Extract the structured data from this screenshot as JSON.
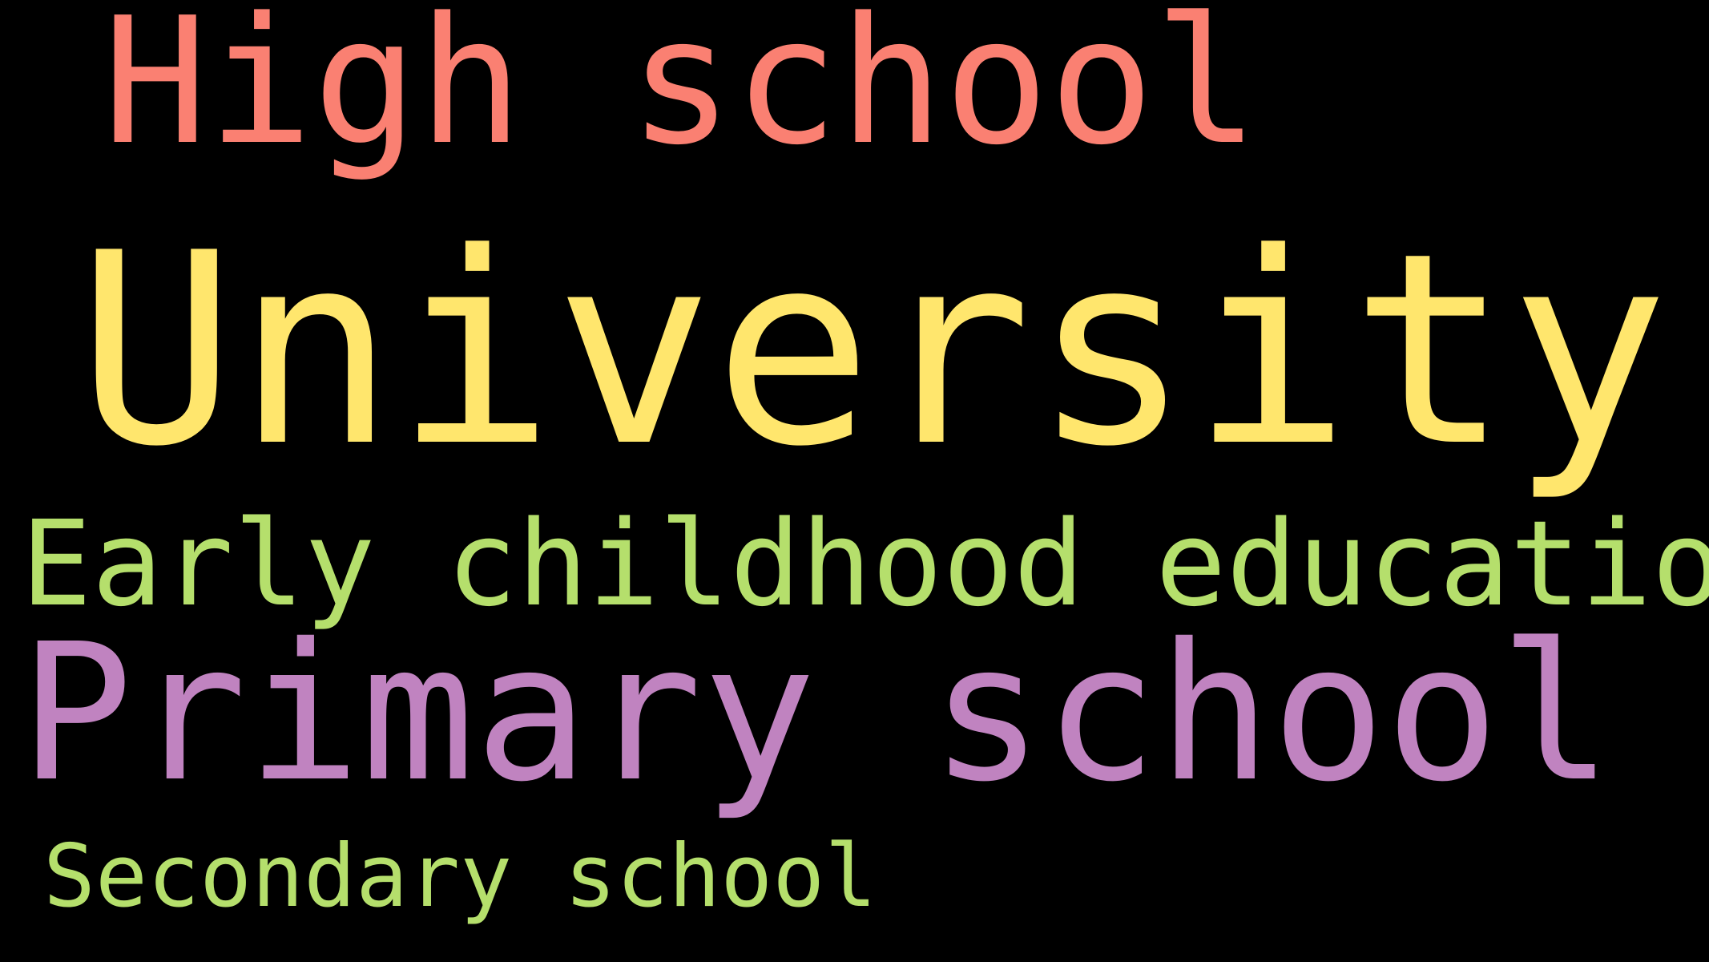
{
  "background": "#000000",
  "words": [
    {
      "text": "High school",
      "color": "#fa8072"
    },
    {
      "text": "University",
      "color": "#ffe66d"
    },
    {
      "text": "Early childhood education",
      "color": "#b5df6c"
    },
    {
      "text": "Primary school",
      "color": "#c083c0"
    },
    {
      "text": "Secondary school",
      "color": "#b5df6c"
    }
  ]
}
